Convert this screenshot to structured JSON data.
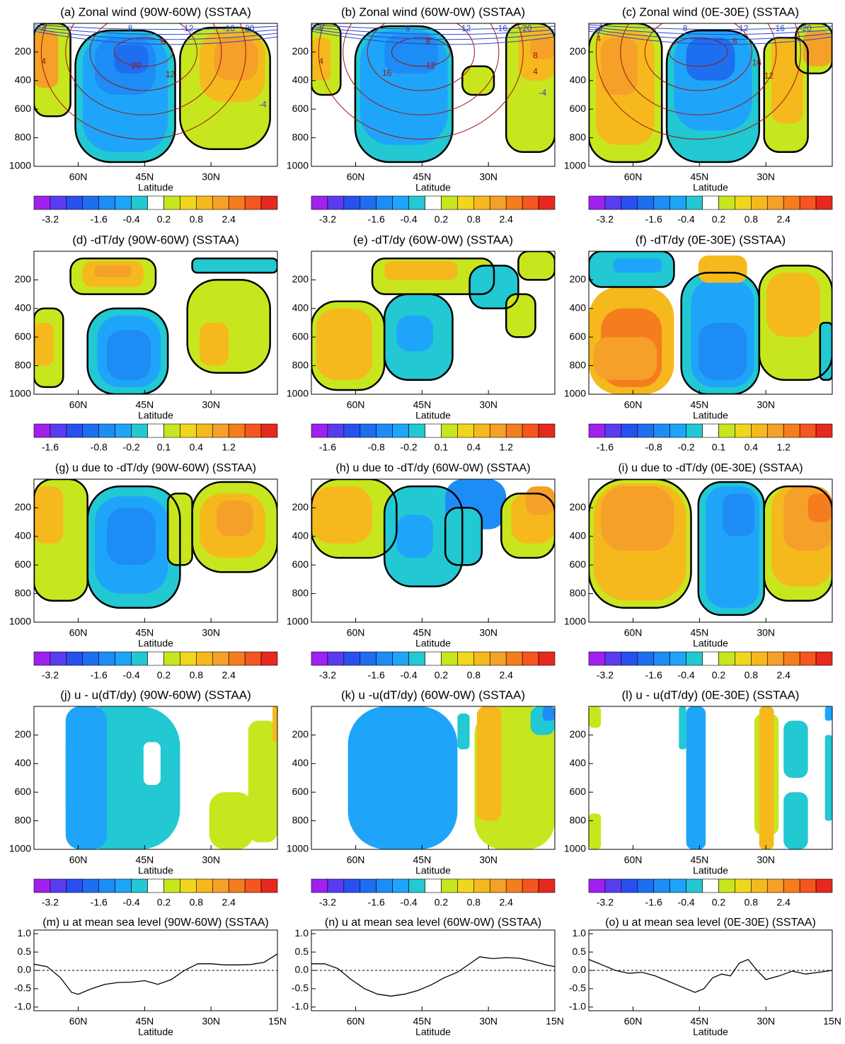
{
  "chart_data": [
    {
      "type": "contour",
      "title": "(a) Zonal wind (90W-60W) (SSTAA)",
      "xlabel": "Latitude",
      "xlim": [
        70,
        15
      ],
      "xticks": [
        {
          "value": 60,
          "label": "60N"
        },
        {
          "value": 45,
          "label": "45N"
        },
        {
          "value": 30,
          "label": "30N"
        }
      ],
      "ylim": [
        1000,
        0
      ],
      "yticks": [
        200,
        400,
        600,
        800,
        1000
      ],
      "colors": [
        "#a020f0",
        "#5a3cf0",
        "#2850f0",
        "#1e6ef0",
        "#1e8cf5",
        "#1ea5fa",
        "#22c8d2",
        "#ffffff",
        "#c8e61e",
        "#f0d71e",
        "#f5b91e",
        "#f5a028",
        "#f57d1e",
        "#f5551e",
        "#e6281e"
      ],
      "colorbar_ticks": [
        -3.2,
        -1.6,
        -0.4,
        0.2,
        0.8,
        2.4
      ],
      "contour_labels": [
        "-4",
        "4",
        "-8",
        "-12",
        "-16",
        "-20",
        "8",
        "20",
        "12",
        "-4"
      ]
    },
    {
      "type": "contour",
      "title": "(b) Zonal wind (60W-0W) (SSTAA)",
      "xlabel": "Latitude",
      "xlim": [
        70,
        15
      ],
      "xticks": [
        {
          "value": 60,
          "label": "60N"
        },
        {
          "value": 45,
          "label": "45N"
        },
        {
          "value": 30,
          "label": "30N"
        }
      ],
      "ylim": [
        1000,
        0
      ],
      "yticks": [
        200,
        400,
        600,
        800,
        1000
      ],
      "colors": [
        "#a020f0",
        "#5a3cf0",
        "#2850f0",
        "#1e6ef0",
        "#1e8cf5",
        "#1ea5fa",
        "#22c8d2",
        "#ffffff",
        "#c8e61e",
        "#f0d71e",
        "#f5b91e",
        "#f5a028",
        "#f57d1e",
        "#f5551e",
        "#e6281e"
      ],
      "colorbar_ticks": [
        -3.2,
        -1.6,
        -0.4,
        0.2,
        0.8,
        2.4
      ],
      "contour_labels": [
        "-4",
        "4",
        "-8",
        "-12",
        "-16",
        "-20",
        "8",
        "16",
        "12",
        "8",
        "4",
        "-4"
      ]
    },
    {
      "type": "contour",
      "title": "(c) Zonal wind (0E-30E) (SSTAA)",
      "xlabel": "Latitude",
      "xlim": [
        70,
        15
      ],
      "xticks": [
        {
          "value": 60,
          "label": "60N"
        },
        {
          "value": 45,
          "label": "45N"
        },
        {
          "value": 30,
          "label": "30N"
        }
      ],
      "ylim": [
        1000,
        0
      ],
      "yticks": [
        200,
        400,
        600,
        800,
        1000
      ],
      "colors": [
        "#a020f0",
        "#5a3cf0",
        "#2850f0",
        "#1e6ef0",
        "#1e8cf5",
        "#1ea5fa",
        "#22c8d2",
        "#ffffff",
        "#c8e61e",
        "#f0d71e",
        "#f5b91e",
        "#f5a028",
        "#f57d1e",
        "#f5551e",
        "#e6281e"
      ],
      "colorbar_ticks": [
        -3.2,
        -1.6,
        -0.4,
        0.2,
        0.8,
        2.4
      ],
      "contour_labels": [
        "-4",
        "4",
        "-8",
        "-12",
        "-16",
        "-20",
        "8",
        "16",
        "12"
      ]
    },
    {
      "type": "contour",
      "title": "(d) -dT/dy (90W-60W) (SSTAA)",
      "xlabel": "Latitude",
      "xlim": [
        70,
        15
      ],
      "xticks": [
        {
          "value": 60,
          "label": "60N"
        },
        {
          "value": 45,
          "label": "45N"
        },
        {
          "value": 30,
          "label": "30N"
        }
      ],
      "ylim": [
        1000,
        0
      ],
      "yticks": [
        200,
        400,
        600,
        800,
        1000
      ],
      "colors": [
        "#a020f0",
        "#5a3cf0",
        "#2850f0",
        "#1e6ef0",
        "#1e8cf5",
        "#1ea5fa",
        "#22c8d2",
        "#ffffff",
        "#c8e61e",
        "#f0d71e",
        "#f5b91e",
        "#f5a028",
        "#f57d1e",
        "#f5551e",
        "#e6281e"
      ],
      "colorbar_ticks": [
        -1.6,
        -0.8,
        -0.2,
        0.1,
        0.4,
        1.2
      ]
    },
    {
      "type": "contour",
      "title": "(e) -dT/dy (60W-0W) (SSTAA)",
      "xlabel": "Latitude",
      "xlim": [
        70,
        15
      ],
      "xticks": [
        {
          "value": 60,
          "label": "60N"
        },
        {
          "value": 45,
          "label": "45N"
        },
        {
          "value": 30,
          "label": "30N"
        }
      ],
      "ylim": [
        1000,
        0
      ],
      "yticks": [
        200,
        400,
        600,
        800,
        1000
      ],
      "colors": [
        "#a020f0",
        "#5a3cf0",
        "#2850f0",
        "#1e6ef0",
        "#1e8cf5",
        "#1ea5fa",
        "#22c8d2",
        "#ffffff",
        "#c8e61e",
        "#f0d71e",
        "#f5b91e",
        "#f5a028",
        "#f57d1e",
        "#f5551e",
        "#e6281e"
      ],
      "colorbar_ticks": [
        -1.6,
        -0.8,
        -0.2,
        0.1,
        0.4,
        1.2
      ]
    },
    {
      "type": "contour",
      "title": "(f) -dT/dy (0E-30E) (SSTAA)",
      "xlabel": "Latitude",
      "xlim": [
        70,
        15
      ],
      "xticks": [
        {
          "value": 60,
          "label": "60N"
        },
        {
          "value": 45,
          "label": "45N"
        },
        {
          "value": 30,
          "label": "30N"
        }
      ],
      "ylim": [
        1000,
        0
      ],
      "yticks": [
        200,
        400,
        600,
        800,
        1000
      ],
      "colors": [
        "#a020f0",
        "#5a3cf0",
        "#2850f0",
        "#1e6ef0",
        "#1e8cf5",
        "#1ea5fa",
        "#22c8d2",
        "#ffffff",
        "#c8e61e",
        "#f0d71e",
        "#f5b91e",
        "#f5a028",
        "#f57d1e",
        "#f5551e",
        "#e6281e"
      ],
      "colorbar_ticks": [
        -1.6,
        -0.8,
        -0.2,
        0.1,
        0.4,
        1.2
      ]
    },
    {
      "type": "contour",
      "title": "(g) u due to -dT/dy (90W-60W) (SSTAA)",
      "xlabel": "Latitude",
      "xlim": [
        70,
        15
      ],
      "xticks": [
        {
          "value": 60,
          "label": "60N"
        },
        {
          "value": 45,
          "label": "45N"
        },
        {
          "value": 30,
          "label": "30N"
        }
      ],
      "ylim": [
        1000,
        0
      ],
      "yticks": [
        200,
        400,
        600,
        800,
        1000
      ],
      "colors": [
        "#a020f0",
        "#5a3cf0",
        "#2850f0",
        "#1e6ef0",
        "#1e8cf5",
        "#1ea5fa",
        "#22c8d2",
        "#ffffff",
        "#c8e61e",
        "#f0d71e",
        "#f5b91e",
        "#f5a028",
        "#f57d1e",
        "#f5551e",
        "#e6281e"
      ],
      "colorbar_ticks": [
        -3.2,
        -1.6,
        -0.4,
        0.2,
        0.8,
        2.4
      ]
    },
    {
      "type": "contour",
      "title": "(h) u due to -dT/dy (60W-0W) (SSTAA)",
      "xlabel": "Latitude",
      "xlim": [
        70,
        15
      ],
      "xticks": [
        {
          "value": 60,
          "label": "60N"
        },
        {
          "value": 45,
          "label": "45N"
        },
        {
          "value": 30,
          "label": "30N"
        }
      ],
      "ylim": [
        1000,
        0
      ],
      "yticks": [
        200,
        400,
        600,
        800,
        1000
      ],
      "colors": [
        "#a020f0",
        "#5a3cf0",
        "#2850f0",
        "#1e6ef0",
        "#1e8cf5",
        "#1ea5fa",
        "#22c8d2",
        "#ffffff",
        "#c8e61e",
        "#f0d71e",
        "#f5b91e",
        "#f5a028",
        "#f57d1e",
        "#f5551e",
        "#e6281e"
      ],
      "colorbar_ticks": [
        -3.2,
        -1.6,
        -0.4,
        0.2,
        0.8,
        2.4
      ]
    },
    {
      "type": "contour",
      "title": "(i) u due to -dT/dy (0E-30E) (SSTAA)",
      "xlabel": "Latitude",
      "xlim": [
        70,
        15
      ],
      "xticks": [
        {
          "value": 60,
          "label": "60N"
        },
        {
          "value": 45,
          "label": "45N"
        },
        {
          "value": 30,
          "label": "30N"
        }
      ],
      "ylim": [
        1000,
        0
      ],
      "yticks": [
        200,
        400,
        600,
        800,
        1000
      ],
      "colors": [
        "#a020f0",
        "#5a3cf0",
        "#2850f0",
        "#1e6ef0",
        "#1e8cf5",
        "#1ea5fa",
        "#22c8d2",
        "#ffffff",
        "#c8e61e",
        "#f0d71e",
        "#f5b91e",
        "#f5a028",
        "#f57d1e",
        "#f5551e",
        "#e6281e"
      ],
      "colorbar_ticks": [
        -3.2,
        -1.6,
        -0.4,
        0.2,
        0.8,
        2.4
      ]
    },
    {
      "type": "contour",
      "title": "(j) u - u(dT/dy) (90W-60W) (SSTAA)",
      "xlabel": "Latitude",
      "xlim": [
        70,
        15
      ],
      "xticks": [
        {
          "value": 60,
          "label": "60N"
        },
        {
          "value": 45,
          "label": "45N"
        },
        {
          "value": 30,
          "label": "30N"
        }
      ],
      "ylim": [
        1000,
        0
      ],
      "yticks": [
        200,
        400,
        600,
        800,
        1000
      ],
      "colors": [
        "#a020f0",
        "#5a3cf0",
        "#2850f0",
        "#1e6ef0",
        "#1e8cf5",
        "#1ea5fa",
        "#22c8d2",
        "#ffffff",
        "#c8e61e",
        "#f0d71e",
        "#f5b91e",
        "#f5a028",
        "#f57d1e",
        "#f5551e",
        "#e6281e"
      ],
      "colorbar_ticks": [
        -3.2,
        -1.6,
        -0.4,
        0.2,
        0.8,
        2.4
      ]
    },
    {
      "type": "contour",
      "title": "(k) u -u(dT/dy) (60W-0W) (SSTAA)",
      "xlabel": "Latitude",
      "xlim": [
        70,
        15
      ],
      "xticks": [
        {
          "value": 60,
          "label": "60N"
        },
        {
          "value": 45,
          "label": "45N"
        },
        {
          "value": 30,
          "label": "30N"
        }
      ],
      "ylim": [
        1000,
        0
      ],
      "yticks": [
        200,
        400,
        600,
        800,
        1000
      ],
      "colors": [
        "#a020f0",
        "#5a3cf0",
        "#2850f0",
        "#1e6ef0",
        "#1e8cf5",
        "#1ea5fa",
        "#22c8d2",
        "#ffffff",
        "#c8e61e",
        "#f0d71e",
        "#f5b91e",
        "#f5a028",
        "#f57d1e",
        "#f5551e",
        "#e6281e"
      ],
      "colorbar_ticks": [
        -3.2,
        -1.6,
        -0.4,
        0.2,
        0.8,
        2.4
      ]
    },
    {
      "type": "contour",
      "title": "(l) u - u(dT/dy) (0E-30E) (SSTAA)",
      "xlabel": "Latitude",
      "xlim": [
        70,
        15
      ],
      "xticks": [
        {
          "value": 60,
          "label": "60N"
        },
        {
          "value": 45,
          "label": "45N"
        },
        {
          "value": 30,
          "label": "30N"
        }
      ],
      "ylim": [
        1000,
        0
      ],
      "yticks": [
        200,
        400,
        600,
        800,
        1000
      ],
      "colors": [
        "#a020f0",
        "#5a3cf0",
        "#2850f0",
        "#1e6ef0",
        "#1e8cf5",
        "#1ea5fa",
        "#22c8d2",
        "#ffffff",
        "#c8e61e",
        "#f0d71e",
        "#f5b91e",
        "#f5a028",
        "#f57d1e",
        "#f5551e",
        "#e6281e"
      ],
      "colorbar_ticks": [
        -3.2,
        -1.6,
        -0.4,
        0.2,
        0.8,
        2.4
      ]
    },
    {
      "type": "line",
      "title": "(m) u at mean sea level (90W-60W) (SSTAA)",
      "xlabel": "Latitude",
      "xlim": [
        70,
        15
      ],
      "xticks": [
        {
          "value": 60,
          "label": "60N"
        },
        {
          "value": 45,
          "label": "45N"
        },
        {
          "value": 30,
          "label": "30N"
        },
        {
          "value": 15,
          "label": "15N"
        }
      ],
      "ylim": [
        -1.1,
        1.1
      ],
      "yticks": [
        {
          "value": 1,
          "label": "1.0"
        },
        {
          "value": 0.5,
          "label": "0.5"
        },
        {
          "value": 0,
          "label": "0.0"
        },
        {
          "value": -0.5,
          "label": "-0.5"
        },
        {
          "value": -1,
          "label": "-1.0"
        }
      ],
      "color": "#000000",
      "x": [
        70,
        67,
        64,
        61.5,
        60,
        57,
        54,
        51,
        48,
        45,
        42,
        39,
        36,
        33,
        30,
        27,
        24,
        21,
        18,
        15
      ],
      "values": [
        0.17,
        0.1,
        -0.2,
        -0.6,
        -0.65,
        -0.5,
        -0.38,
        -0.33,
        -0.32,
        -0.28,
        -0.38,
        -0.25,
        0.0,
        0.18,
        0.18,
        0.15,
        0.15,
        0.16,
        0.22,
        0.45
      ]
    },
    {
      "type": "line",
      "title": "(n) u at mean sea level (60W-0W) (SSTAA)",
      "xlabel": "Latitude",
      "xlim": [
        70,
        15
      ],
      "xticks": [
        {
          "value": 60,
          "label": "60N"
        },
        {
          "value": 45,
          "label": "45N"
        },
        {
          "value": 30,
          "label": "30N"
        },
        {
          "value": 15,
          "label": "15N"
        }
      ],
      "ylim": [
        -1.1,
        1.1
      ],
      "yticks": [
        {
          "value": 1,
          "label": "1.0"
        },
        {
          "value": 0.5,
          "label": "0.5"
        },
        {
          "value": 0,
          "label": "0.0"
        },
        {
          "value": -0.5,
          "label": "-0.5"
        },
        {
          "value": -1,
          "label": "-1.0"
        }
      ],
      "color": "#000000",
      "x": [
        70,
        67,
        64,
        61,
        58,
        55,
        52,
        49,
        46,
        43,
        40,
        37,
        34,
        32,
        29,
        26,
        23,
        20,
        17,
        15
      ],
      "values": [
        0.18,
        0.18,
        0.05,
        -0.25,
        -0.5,
        -0.65,
        -0.7,
        -0.65,
        -0.55,
        -0.4,
        -0.2,
        -0.05,
        0.2,
        0.37,
        0.32,
        0.35,
        0.33,
        0.25,
        0.15,
        0.1
      ]
    },
    {
      "type": "line",
      "title": "(o) u at mean sea level (0E-30E) (SSTAA)",
      "xlabel": "Latitude",
      "xlim": [
        70,
        15
      ],
      "xticks": [
        {
          "value": 60,
          "label": "60N"
        },
        {
          "value": 45,
          "label": "45N"
        },
        {
          "value": 30,
          "label": "30N"
        },
        {
          "value": 15,
          "label": "15N"
        }
      ],
      "ylim": [
        -1.1,
        1.1
      ],
      "yticks": [
        {
          "value": 1,
          "label": "1.0"
        },
        {
          "value": 0.5,
          "label": "0.5"
        },
        {
          "value": 0,
          "label": "0.0"
        },
        {
          "value": -0.5,
          "label": "-0.5"
        },
        {
          "value": -1,
          "label": "-1.0"
        }
      ],
      "color": "#000000",
      "x": [
        70,
        67,
        64,
        61,
        58,
        55,
        52,
        49,
        46,
        44,
        42,
        40,
        38,
        36,
        34,
        32,
        30,
        27,
        24,
        21,
        18,
        15
      ],
      "values": [
        0.3,
        0.15,
        0.0,
        -0.08,
        -0.05,
        -0.15,
        -0.3,
        -0.45,
        -0.6,
        -0.5,
        -0.2,
        -0.1,
        -0.15,
        0.2,
        0.3,
        0.0,
        -0.25,
        -0.15,
        -0.02,
        -0.1,
        -0.05,
        0.0
      ]
    }
  ]
}
